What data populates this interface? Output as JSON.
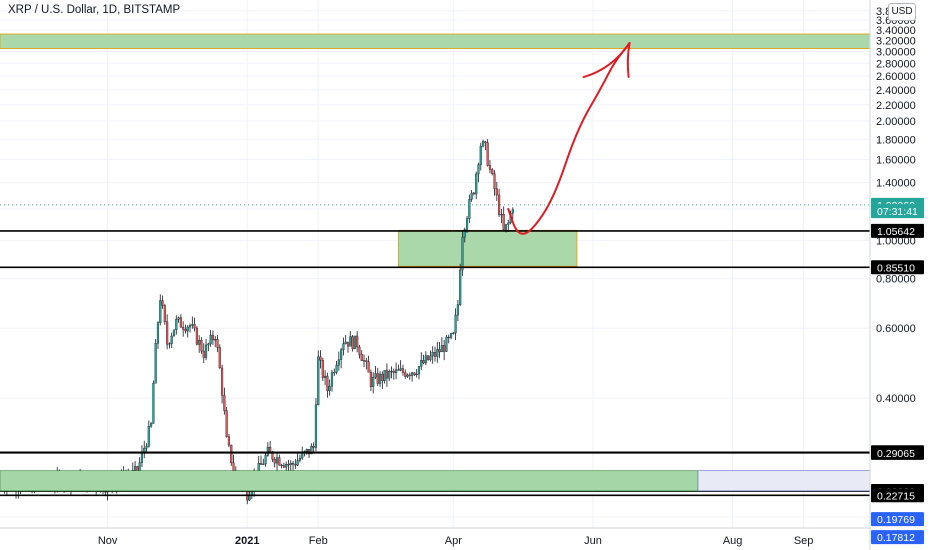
{
  "header": {
    "symbol_title": "XRP / U.S. Dollar, 1D, BITSTAMP",
    "currency": "USD"
  },
  "colors": {
    "up": "#26a69a",
    "down": "#ef5350",
    "candle_body": "#131722",
    "zone_fill": "#a5d6a7",
    "zone_border": "#e0a000",
    "arrow": "#e01b24",
    "grid": "#f0f3fa",
    "axis_text": "#131722",
    "last_price": "#26a69a",
    "marker_blue": "#2962ff"
  },
  "chart_data": {
    "type": "candlestick",
    "title": "XRP / U.S. Dollar, 1D, BITSTAMP",
    "y_scale": "log",
    "ylim": [
      0.178,
      3.9
    ],
    "xlim": [
      "2020-09-15",
      "2021-09-30"
    ],
    "y_ticks": [
      "3.80000",
      "3.60000",
      "3.40000",
      "3.20000",
      "3.00000",
      "2.80000",
      "2.60000",
      "2.40000",
      "2.20000",
      "2.00000",
      "1.80000",
      "1.60000",
      "1.40000",
      "1.20000",
      "1.00000",
      "0.80000",
      "0.60000",
      "0.40000",
      "0.20000"
    ],
    "x_ticks": [
      {
        "label": "Nov",
        "date": "2020-11-01"
      },
      {
        "label": "2021",
        "date": "2021-01-01"
      },
      {
        "label": "Feb",
        "date": "2021-02-01"
      },
      {
        "label": "Apr",
        "date": "2021-04-01"
      },
      {
        "label": "Jun",
        "date": "2021-06-01"
      },
      {
        "label": "Aug",
        "date": "2021-08-01"
      },
      {
        "label": "Sep",
        "date": "2021-09-01"
      }
    ],
    "price_series": {
      "name": "XRPUSD",
      "points": [
        [
          "2020-09-15",
          0.245
        ],
        [
          "2020-10-01",
          0.24
        ],
        [
          "2020-10-15",
          0.25
        ],
        [
          "2020-11-01",
          0.24
        ],
        [
          "2020-11-14",
          0.26
        ],
        [
          "2020-11-20",
          0.34
        ],
        [
          "2020-11-24",
          0.72
        ],
        [
          "2020-11-27",
          0.55
        ],
        [
          "2020-12-01",
          0.62
        ],
        [
          "2020-12-07",
          0.61
        ],
        [
          "2020-12-13",
          0.52
        ],
        [
          "2020-12-18",
          0.58
        ],
        [
          "2020-12-23",
          0.31
        ],
        [
          "2020-12-27",
          0.25
        ],
        [
          "2021-01-01",
          0.23
        ],
        [
          "2021-01-10",
          0.29
        ],
        [
          "2021-01-20",
          0.27
        ],
        [
          "2021-01-30",
          0.3
        ],
        [
          "2021-02-01",
          0.5
        ],
        [
          "2021-02-05",
          0.42
        ],
        [
          "2021-02-12",
          0.56
        ],
        [
          "2021-02-18",
          0.55
        ],
        [
          "2021-02-24",
          0.44
        ],
        [
          "2021-03-05",
          0.46
        ],
        [
          "2021-03-15",
          0.47
        ],
        [
          "2021-03-25",
          0.52
        ],
        [
          "2021-04-01",
          0.57
        ],
        [
          "2021-04-03",
          0.69
        ],
        [
          "2021-04-05",
          1.05
        ],
        [
          "2021-04-10",
          1.35
        ],
        [
          "2021-04-13",
          1.75
        ],
        [
          "2021-04-15",
          1.7
        ],
        [
          "2021-04-17",
          1.5
        ],
        [
          "2021-04-19",
          1.35
        ],
        [
          "2021-04-21",
          1.2
        ],
        [
          "2021-04-23",
          1.05
        ],
        [
          "2021-04-25",
          1.1
        ],
        [
          "2021-04-27",
          1.23
        ]
      ]
    },
    "zones": [
      {
        "from": "2020-09-15",
        "to": "2021-09-30",
        "low": 3.05,
        "high": 3.32
      },
      {
        "from": "2021-03-08",
        "to": "2021-05-25",
        "low": 0.86,
        "high": 1.06
      }
    ],
    "horizontal_levels": [
      1.05642,
      0.8551,
      0.29166,
      0.29065,
      0.23283,
      0.22715
    ],
    "price_labels": [
      {
        "value": "1.22960",
        "price": 1.2296,
        "kind": "last"
      },
      {
        "value": "07:31:41",
        "price": 1.185,
        "kind": "countdown"
      },
      {
        "value": "1.05642",
        "price": 1.05642,
        "kind": "level"
      },
      {
        "value": "0.85510",
        "price": 0.8551,
        "kind": "level"
      },
      {
        "value": "0.29166",
        "price": 0.29166,
        "kind": "level"
      },
      {
        "value": "0.29065",
        "price": 0.29065,
        "kind": "level"
      },
      {
        "value": "0.23283",
        "price": 0.23283,
        "kind": "level"
      },
      {
        "value": "0.22715",
        "price": 0.22715,
        "kind": "level"
      },
      {
        "value": "0.19769",
        "price": 0.19769,
        "kind": "blue"
      },
      {
        "value": "0.17812",
        "price": 0.17812,
        "kind": "blue"
      }
    ],
    "last_price": 1.2296,
    "projection": [
      [
        "2021-04-25",
        1.2
      ],
      [
        "2021-04-29",
        1.03
      ],
      [
        "2021-05-05",
        1.05
      ],
      [
        "2021-05-15",
        1.28
      ],
      [
        "2021-05-25",
        1.9
      ],
      [
        "2021-06-05",
        2.45
      ],
      [
        "2021-06-10",
        2.8
      ],
      [
        "2021-06-17",
        3.15
      ]
    ]
  }
}
